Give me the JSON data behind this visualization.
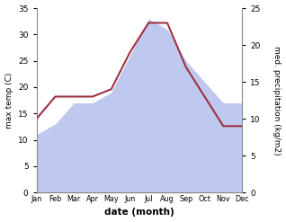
{
  "months": [
    "Jan",
    "Feb",
    "Mar",
    "Apr",
    "May",
    "Jun",
    "Jul",
    "Aug",
    "Sep",
    "Oct",
    "Nov",
    "Dec"
  ],
  "temperature": [
    11,
    13,
    17,
    17,
    19,
    26,
    33,
    31,
    25,
    21,
    17,
    17
  ],
  "precipitation": [
    10,
    13,
    13,
    13,
    14,
    19,
    23,
    23,
    17,
    13,
    9,
    9
  ],
  "temp_color_fill": "#b8c4ee",
  "precip_color": "#a03040",
  "left_ylabel": "max temp (C)",
  "right_ylabel": "med. precipitation (kg/m2)",
  "xlabel": "date (month)",
  "left_ylim": [
    0,
    35
  ],
  "right_ylim": [
    0,
    25
  ],
  "left_yticks": [
    0,
    5,
    10,
    15,
    20,
    25,
    30,
    35
  ],
  "right_yticks": [
    0,
    5,
    10,
    15,
    20,
    25
  ],
  "background_color": "#ffffff"
}
